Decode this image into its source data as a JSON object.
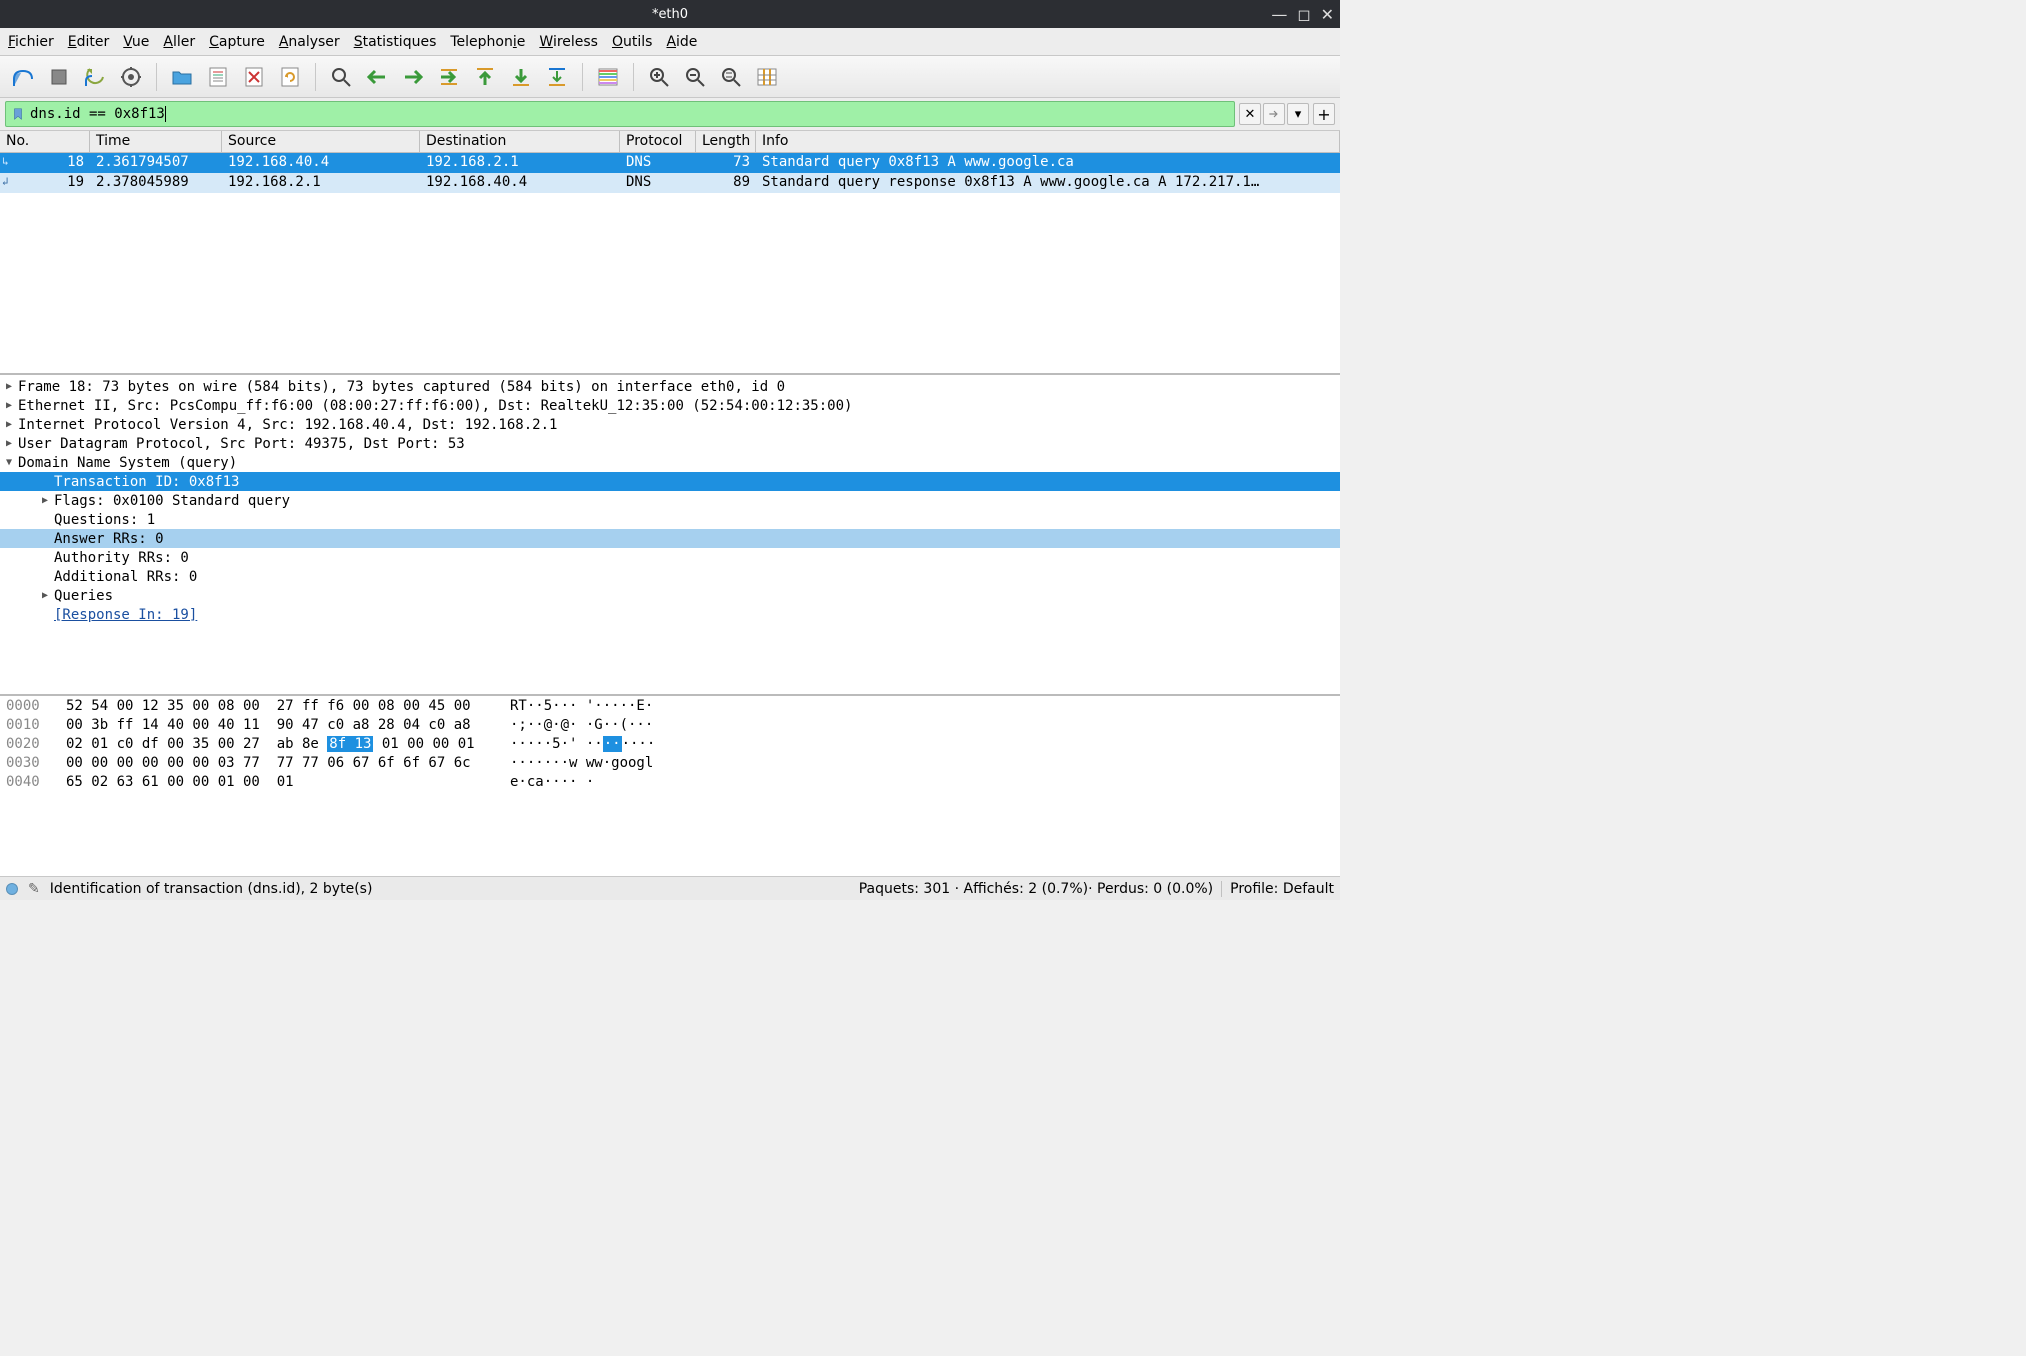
{
  "window": {
    "title": "*eth0"
  },
  "menu": [
    {
      "label": "Fichier",
      "u": 0
    },
    {
      "label": "Editer",
      "u": 0
    },
    {
      "label": "Vue",
      "u": 0
    },
    {
      "label": "Aller",
      "u": 0
    },
    {
      "label": "Capture",
      "u": 0
    },
    {
      "label": "Analyser",
      "u": 0
    },
    {
      "label": "Statistiques",
      "u": 0
    },
    {
      "label": "Telephonie",
      "u": 8
    },
    {
      "label": "Wireless",
      "u": 0
    },
    {
      "label": "Outils",
      "u": 0
    },
    {
      "label": "Aide",
      "u": 0
    }
  ],
  "filter": {
    "value": "dns.id == 0x8f13",
    "bg": "#9ff0a7",
    "border": "#6fc079"
  },
  "columns": {
    "no": "No.",
    "time": "Time",
    "src": "Source",
    "dst": "Destination",
    "proto": "Protocol",
    "len": "Length",
    "info": "Info"
  },
  "rows": [
    {
      "sel": true,
      "no": "18",
      "time": "2.361794507",
      "src": "192.168.40.4",
      "dst": "192.168.2.1",
      "proto": "DNS",
      "len": "73",
      "info": "Standard query 0x8f13 A www.google.ca"
    },
    {
      "sel": false,
      "no": "19",
      "time": "2.378045989",
      "src": "192.168.2.1",
      "dst": "192.168.40.4",
      "proto": "DNS",
      "len": "89",
      "info": "Standard query response 0x8f13 A www.google.ca A 172.217.1…"
    }
  ],
  "details": [
    {
      "type": "top",
      "exp": false,
      "text": "Frame 18: 73 bytes on wire (584 bits), 73 bytes captured (584 bits) on interface eth0, id 0"
    },
    {
      "type": "top",
      "exp": false,
      "text": "Ethernet II, Src: PcsCompu_ff:f6:00 (08:00:27:ff:f6:00), Dst: RealtekU_12:35:00 (52:54:00:12:35:00)"
    },
    {
      "type": "top",
      "exp": false,
      "text": "Internet Protocol Version 4, Src: 192.168.40.4, Dst: 192.168.2.1"
    },
    {
      "type": "top",
      "exp": false,
      "text": "User Datagram Protocol, Src Port: 49375, Dst Port: 53"
    },
    {
      "type": "top",
      "exp": true,
      "text": "Domain Name System (query)"
    },
    {
      "type": "child",
      "sel": "blue",
      "text": "Transaction ID: 0x8f13"
    },
    {
      "type": "child",
      "tri": true,
      "text": "Flags: 0x0100 Standard query"
    },
    {
      "type": "child",
      "text": "Questions: 1"
    },
    {
      "type": "child",
      "sel": "light",
      "text": "Answer RRs: 0"
    },
    {
      "type": "child",
      "text": "Authority RRs: 0"
    },
    {
      "type": "child",
      "text": "Additional RRs: 0"
    },
    {
      "type": "child",
      "tri": true,
      "text": "Queries"
    },
    {
      "type": "child",
      "link": true,
      "text": "[Response In: 19]"
    }
  ],
  "bytes": [
    {
      "off": "0000",
      "h1": "52 54 00 12 35 00 08 00",
      "h2": "27 ff f6 00 08 00 45 00",
      "a": "RT··5··· '·····E·"
    },
    {
      "off": "0010",
      "h1": "00 3b ff 14 40 00 40 11",
      "h2": "90 47 c0 a8 28 04 c0 a8",
      "a": "·;··@·@· ·G··(···"
    },
    {
      "off": "0020",
      "h1": "02 01 c0 df 00 35 00 27",
      "h2a": "ab 8e ",
      "h2hi": "8f 13",
      "h2b": " 01 00 00 01",
      "aa": "·····5·' ··",
      "ahi": "··",
      "ab": "····"
    },
    {
      "off": "0030",
      "h1": "00 00 00 00 00 00 03 77",
      "h2": "77 77 06 67 6f 6f 67 6c",
      "a": "·······w ww·googl"
    },
    {
      "off": "0040",
      "h1": "65 02 63 61 00 00 01 00",
      "h2": "01",
      "a": "e·ca···· ·"
    }
  ],
  "status": {
    "left": "Identification of transaction (dns.id), 2 byte(s)",
    "mid": "Paquets: 301 · Affichés: 2 (0.7%)· Perdus: 0 (0.0%)",
    "right": "Profile: Default"
  },
  "colors": {
    "sel_row_bg": "#1e90e0",
    "sel_row_fg": "#ffffff",
    "rel_row_bg": "#d6e9f8",
    "detail_sel_bg": "#1e90e0",
    "detail_sellight_bg": "#a6d0ef"
  }
}
